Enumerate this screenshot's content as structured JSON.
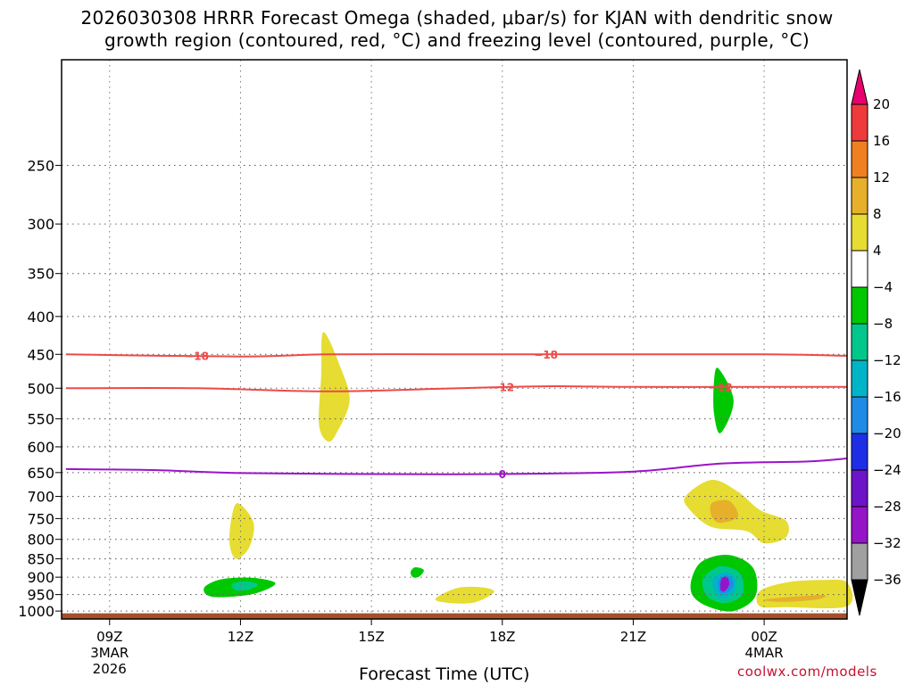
{
  "title": {
    "line1": "2026030308 HRRR Forecast Omega (shaded, μbar/s) for KJAN with dendritic snow",
    "line2": "growth region (contoured, red, °C) and freezing level (contoured, purple, °C)"
  },
  "footer": {
    "url": "coolwx.com/models"
  },
  "chart_data": {
    "type": "time-height cross section",
    "title": "2026030308 HRRR Forecast Omega (shaded, μbar/s) for KJAN with dendritic snow growth region (contoured, red, °C) and freezing level (contoured, purple, °C)",
    "xlabel": "Forecast Time (UTC)",
    "ylabel": "",
    "x_range_hours_after_00z_3mar": [
      7.9,
      25.9
    ],
    "y_range_hpa": [
      180,
      1025
    ],
    "y_scale": "log",
    "grid": true,
    "x_ticks": [
      {
        "hour": 9,
        "label": "09Z",
        "sub1": "3MAR",
        "sub2": "2026"
      },
      {
        "hour": 12,
        "label": "12Z",
        "sub1": "",
        "sub2": ""
      },
      {
        "hour": 15,
        "label": "15Z",
        "sub1": "",
        "sub2": ""
      },
      {
        "hour": 18,
        "label": "18Z",
        "sub1": "",
        "sub2": ""
      },
      {
        "hour": 21,
        "label": "21Z",
        "sub1": "",
        "sub2": ""
      },
      {
        "hour": 24,
        "label": "00Z",
        "sub1": "4MAR",
        "sub2": ""
      }
    ],
    "y_ticks": [
      {
        "p": 250,
        "label": "250"
      },
      {
        "p": 300,
        "label": "300"
      },
      {
        "p": 350,
        "label": "350"
      },
      {
        "p": 400,
        "label": "400"
      },
      {
        "p": 450,
        "label": "450"
      },
      {
        "p": 500,
        "label": "500"
      },
      {
        "p": 550,
        "label": "550"
      },
      {
        "p": 600,
        "label": "600"
      },
      {
        "p": 650,
        "label": "650"
      },
      {
        "p": 700,
        "label": "700"
      },
      {
        "p": 750,
        "label": "750"
      },
      {
        "p": 800,
        "label": "800"
      },
      {
        "p": 850,
        "label": "850"
      },
      {
        "p": 900,
        "label": "900"
      },
      {
        "p": 950,
        "label": "950"
      },
      {
        "p": 1000,
        "label": "1000"
      }
    ],
    "colorbar": {
      "levels": [
        "20",
        "16",
        "12",
        "8",
        "4",
        "−4",
        "−8",
        "−12",
        "−16",
        "−20",
        "−24",
        "−28",
        "−32",
        "−36"
      ],
      "colors": [
        "#e8006e",
        "#ee3a3a",
        "#f07f22",
        "#e6b02a",
        "#e6dc32",
        "#ffffff",
        "#00c800",
        "#00c88c",
        "#00b4c8",
        "#1e8ce6",
        "#1e2ee6",
        "#6e14c8",
        "#9614c8",
        "#a0a0a0",
        "#000000"
      ]
    },
    "contours": [
      {
        "name": "dgz-minus18",
        "color": "#f04848",
        "label": "−18",
        "points": [
          [
            8,
            450
          ],
          [
            12,
            453
          ],
          [
            14,
            450
          ],
          [
            17,
            450
          ],
          [
            19,
            450
          ],
          [
            21,
            450
          ],
          [
            24,
            450
          ],
          [
            26,
            452
          ]
        ],
        "label_hours": [
          11,
          19
        ]
      },
      {
        "name": "dgz-minus12",
        "color": "#f04848",
        "label": "−12",
        "points": [
          [
            8,
            500
          ],
          [
            11,
            500
          ],
          [
            14,
            505
          ],
          [
            17,
            500
          ],
          [
            19,
            497
          ],
          [
            21,
            498
          ],
          [
            24,
            498
          ],
          [
            26,
            498
          ]
        ],
        "label_hours": [
          18,
          23
        ]
      },
      {
        "name": "freezing-level-0",
        "color": "#9b14c8",
        "label": "0",
        "points": [
          [
            8,
            643
          ],
          [
            10,
            645
          ],
          [
            12,
            651
          ],
          [
            15,
            653
          ],
          [
            18,
            653
          ],
          [
            21,
            648
          ],
          [
            23,
            632
          ],
          [
            25,
            628
          ],
          [
            26,
            622
          ]
        ],
        "label_hours": [
          18
        ]
      }
    ],
    "omega_areas": [
      {
        "name": "omega-pos-14z-mid",
        "value": 4,
        "points": [
          [
            13.9,
            420
          ],
          [
            14.3,
            470
          ],
          [
            14.5,
            520
          ],
          [
            14.2,
            575
          ],
          [
            14.0,
            590
          ],
          [
            13.8,
            560
          ],
          [
            13.85,
            480
          ]
        ]
      },
      {
        "name": "omega-pos-12z-low",
        "value": 4,
        "points": [
          [
            11.95,
            715
          ],
          [
            12.3,
            760
          ],
          [
            12.2,
            820
          ],
          [
            11.9,
            850
          ],
          [
            11.75,
            810
          ],
          [
            11.8,
            745
          ]
        ]
      },
      {
        "name": "omega-neg-12z",
        "value": -4,
        "points": [
          [
            11.2,
            925
          ],
          [
            11.6,
            905
          ],
          [
            12.3,
            902
          ],
          [
            12.8,
            918
          ],
          [
            12.3,
            948
          ],
          [
            11.5,
            958
          ],
          [
            11.2,
            948
          ]
        ]
      },
      {
        "name": "omega-neg-12z-core",
        "value": -8,
        "points": [
          [
            11.8,
            920
          ],
          [
            12.1,
            912
          ],
          [
            12.4,
            920
          ],
          [
            12.2,
            935
          ],
          [
            11.9,
            938
          ]
        ]
      },
      {
        "name": "omega-neg-16z",
        "value": -4,
        "points": [
          [
            15.9,
            885
          ],
          [
            16.0,
            873
          ],
          [
            16.2,
            880
          ],
          [
            16.1,
            898
          ],
          [
            15.95,
            900
          ]
        ]
      },
      {
        "name": "omega-pos-17z",
        "value": 4,
        "points": [
          [
            16.5,
            958
          ],
          [
            17.0,
            930
          ],
          [
            17.6,
            930
          ],
          [
            17.8,
            945
          ],
          [
            17.3,
            975
          ],
          [
            16.6,
            972
          ]
        ]
      },
      {
        "name": "omega-neg-23z-mid",
        "value": -4,
        "points": [
          [
            22.95,
            470
          ],
          [
            23.3,
            520
          ],
          [
            23.0,
            575
          ],
          [
            22.85,
            540
          ],
          [
            22.85,
            490
          ]
        ]
      },
      {
        "name": "omega-pos-23z-upper",
        "value": 4,
        "points": [
          [
            22.2,
            700
          ],
          [
            22.8,
            665
          ],
          [
            23.4,
            690
          ],
          [
            23.9,
            730
          ],
          [
            24.5,
            755
          ],
          [
            24.5,
            795
          ],
          [
            24.0,
            810
          ],
          [
            23.6,
            780
          ],
          [
            22.8,
            770
          ],
          [
            22.3,
            730
          ]
        ]
      },
      {
        "name": "omega-pos-23z-core",
        "value": 8,
        "points": [
          [
            22.8,
            715
          ],
          [
            23.2,
            710
          ],
          [
            23.4,
            745
          ],
          [
            23.0,
            760
          ],
          [
            22.8,
            745
          ]
        ]
      },
      {
        "name": "omega-neg-23z-low",
        "value": -4,
        "points": [
          [
            22.35,
            900
          ],
          [
            22.6,
            855
          ],
          [
            23.2,
            840
          ],
          [
            23.75,
            875
          ],
          [
            23.8,
            955
          ],
          [
            23.3,
            1000
          ],
          [
            22.7,
            985
          ],
          [
            22.35,
            950
          ]
        ]
      },
      {
        "name": "omega-neg-23z-low-8",
        "value": -8,
        "points": [
          [
            22.6,
            905
          ],
          [
            23.0,
            870
          ],
          [
            23.45,
            890
          ],
          [
            23.5,
            950
          ],
          [
            23.1,
            975
          ],
          [
            22.7,
            955
          ]
        ]
      },
      {
        "name": "omega-neg-23z-low-12",
        "value": -12,
        "points": [
          [
            22.8,
            910
          ],
          [
            23.1,
            885
          ],
          [
            23.35,
            905
          ],
          [
            23.3,
            945
          ],
          [
            23.0,
            960
          ]
        ]
      },
      {
        "name": "omega-neg-23z-low-16",
        "value": -16,
        "points": [
          [
            22.95,
            910
          ],
          [
            23.15,
            895
          ],
          [
            23.3,
            915
          ],
          [
            23.2,
            940
          ],
          [
            23.0,
            945
          ]
        ]
      },
      {
        "name": "omega-neg-23z-low-28",
        "value": -28,
        "points": [
          [
            23.02,
            905
          ],
          [
            23.15,
            900
          ],
          [
            23.2,
            920
          ],
          [
            23.1,
            940
          ],
          [
            23.0,
            935
          ]
        ]
      },
      {
        "name": "omega-pos-25z",
        "value": 4,
        "points": [
          [
            23.9,
            940
          ],
          [
            24.5,
            915
          ],
          [
            25.3,
            908
          ],
          [
            25.9,
            915
          ],
          [
            25.9,
            985
          ],
          [
            24.5,
            988
          ],
          [
            23.9,
            985
          ]
        ]
      },
      {
        "name": "omega-pos-25z-core",
        "value": 8,
        "points": [
          [
            24.0,
            965
          ],
          [
            24.8,
            955
          ],
          [
            25.4,
            952
          ],
          [
            25.2,
            965
          ],
          [
            24.4,
            972
          ]
        ]
      }
    ],
    "terrain": {
      "color": "#a65028",
      "top_hpa": 1007,
      "name": "surface-terrain"
    }
  }
}
